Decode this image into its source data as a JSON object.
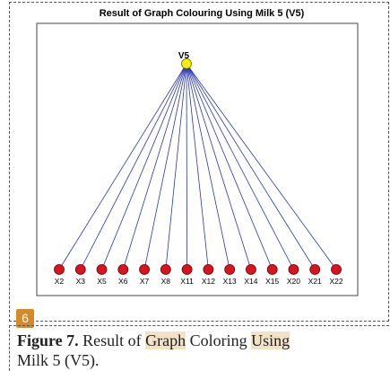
{
  "figure": {
    "title": "Result of Graph Colouring Using Milk 5 (V5)",
    "root": "V5",
    "nodes": [
      "X2",
      "X3",
      "X5",
      "X6",
      "X7",
      "X8",
      "X11",
      "X12",
      "X13",
      "X14",
      "X15",
      "X20",
      "X21",
      "X22"
    ]
  },
  "badge": "6",
  "caption": {
    "label": "Figure 7.",
    "parts": [
      " Result of ",
      "Graph",
      " Coloring ",
      "Using"
    ],
    "line2": "Milk 5 (V5)."
  }
}
